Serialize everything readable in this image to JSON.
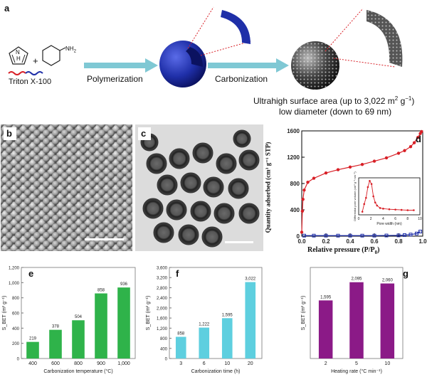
{
  "panel_a": {
    "label": "a",
    "surfactant_label": "Triton X-100",
    "amine_label": "NH",
    "amine_sub": "2",
    "pyrrole_nh": "N",
    "pyrrole_h": "H",
    "plus": "+",
    "step1": "Polymerization",
    "step2": "Carbonization",
    "result_line1": "Ultrahigh surface area (up to 3,022 m",
    "result_line1_sup": "2",
    "result_line1_unit": " g",
    "result_line1_sup2": "−1",
    "result_line1_end": ")",
    "result_line2": "low diameter (down to 69 nm)",
    "colors": {
      "sphere_blue": "#1f2fa8",
      "arrow_teal": "#7fc8d4",
      "carbon_grey": "#333333"
    }
  },
  "panel_b": {
    "label": "b"
  },
  "panel_c": {
    "label": "c"
  },
  "panel_d": {
    "label": "d",
    "xlabel": "Relative pressure (P/P",
    "xlabel_sub": "0",
    "xlabel_end": ")",
    "ylabel": "Quantity adsorbed (cm³ g⁻¹ STP)",
    "inset_xlabel": "Pore width (nm)",
    "inset_ylabel": "Differential pore volume (cm³ g⁻¹ nm⁻¹)"
  },
  "chart_data": [
    {
      "id": "d",
      "type": "line",
      "xlabel": "Relative pressure (P/P0)",
      "ylabel": "Quantity adsorbed (cm3 g-1 STP)",
      "xlim": [
        0.0,
        1.0
      ],
      "ylim": [
        0,
        1600
      ],
      "xticks": [
        "0.0",
        "0.2",
        "0.4",
        "0.6",
        "0.8",
        "1.0"
      ],
      "yticks": [
        "0",
        "400",
        "800",
        "1200",
        "1600"
      ],
      "series": [
        {
          "color": "#d81f26",
          "x": [
            0.0,
            0.005,
            0.01,
            0.02,
            0.05,
            0.1,
            0.2,
            0.3,
            0.4,
            0.5,
            0.6,
            0.7,
            0.8,
            0.85,
            0.9,
            0.93,
            0.96,
            0.98,
            0.99
          ],
          "y": [
            60,
            380,
            560,
            700,
            820,
            880,
            960,
            1010,
            1050,
            1090,
            1140,
            1190,
            1260,
            1300,
            1360,
            1420,
            1500,
            1560,
            1590
          ]
        },
        {
          "color": "#1f2fa8",
          "x": [
            0.02,
            0.1,
            0.2,
            0.3,
            0.4,
            0.5,
            0.6,
            0.7,
            0.8,
            0.85,
            0.9,
            0.95,
            0.98
          ],
          "y": [
            8,
            8,
            8,
            8,
            8,
            8,
            8,
            10,
            12,
            16,
            24,
            40,
            70
          ]
        }
      ]
    },
    {
      "id": "d-inset",
      "type": "line",
      "xlabel": "Pore width (nm)",
      "ylabel": "Differential pore volume (cm3 g-1 nm-1)",
      "xlim": [
        0,
        10
      ],
      "xticks": [
        "0",
        "2",
        "4",
        "6",
        "8",
        "10"
      ],
      "series": [
        {
          "color": "#d81f26",
          "x": [
            0.6,
            0.9,
            1.2,
            1.5,
            1.8,
            2.1,
            2.4,
            2.7,
            3.0,
            3.5,
            4.0,
            5.0,
            6.0,
            7.0,
            8.0,
            9.0
          ],
          "y": [
            0.1,
            0.35,
            0.55,
            0.9,
            1.1,
            1.0,
            0.6,
            0.4,
            0.3,
            0.22,
            0.2,
            0.18,
            0.17,
            0.16,
            0.15,
            0.15
          ]
        }
      ]
    },
    {
      "id": "e",
      "type": "bar",
      "color": "#2fb34a",
      "xlabel": "Carbonization temperature (°C)",
      "ylabel": "S_BET (m² g⁻¹)",
      "categories": [
        "400",
        "600",
        "800",
        "900",
        "1,000"
      ],
      "values": [
        219,
        378,
        504,
        858,
        936
      ],
      "value_labels": [
        "219",
        "378",
        "504",
        "858",
        "936"
      ],
      "ylim": [
        0,
        1200
      ],
      "yticks": [
        "0",
        "200",
        "400",
        "600",
        "800",
        "1,000",
        "1,200"
      ]
    },
    {
      "id": "f",
      "type": "bar",
      "color": "#5ecfdf",
      "xlabel": "Carbonization time (h)",
      "ylabel": "S_BET (m² g⁻¹)",
      "categories": [
        "3",
        "6",
        "10",
        "20"
      ],
      "values": [
        858,
        1222,
        1595,
        3022
      ],
      "value_labels": [
        "858",
        "1,222",
        "1,595",
        "3,022"
      ],
      "ylim": [
        0,
        3600
      ],
      "yticks": [
        "0",
        "400",
        "800",
        "1,200",
        "1,600",
        "2,000",
        "2,400",
        "2,800",
        "3,200",
        "3,600"
      ]
    },
    {
      "id": "g",
      "type": "bar",
      "color": "#8b1a87",
      "xlabel": "Heating rate (°C min⁻¹)",
      "ylabel": "S_BET (m² g⁻¹)",
      "categories": [
        "2",
        "5",
        "10"
      ],
      "values": [
        1595,
        2095,
        2060
      ],
      "value_labels": [
        "1,595",
        "2,095",
        "2,060"
      ],
      "ylim": [
        0,
        2500
      ],
      "yticks": []
    }
  ],
  "bar_panels": {
    "e": {
      "label": "e"
    },
    "f": {
      "label": "f"
    },
    "g": {
      "label": "g"
    }
  }
}
